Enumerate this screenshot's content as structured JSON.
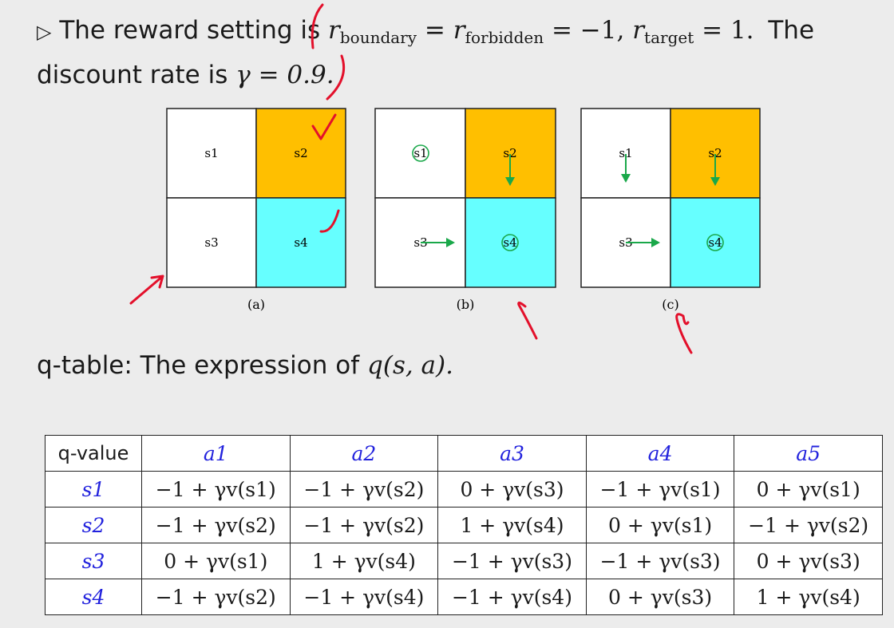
{
  "intro": {
    "bullet": "▷",
    "lead": "The reward setting is",
    "r_boundary_sym": "r",
    "r_boundary_sub": "boundary",
    "eq1": "=",
    "r_forbidden_sym": "r",
    "r_forbidden_sub": "forbidden",
    "eq2": "= −1,",
    "r_target_sym": "r",
    "r_target_sub": "target",
    "eq3": "= 1.",
    "tail": "The",
    "line2_lead": "discount rate is",
    "gamma_expr": "γ = 0.9."
  },
  "grids": [
    {
      "caption": "(a)",
      "cells": [
        "s1",
        "s2",
        "s3",
        "s4"
      ]
    },
    {
      "caption": "(b)",
      "cells": [
        "s1",
        "s2",
        "s3",
        "s4"
      ]
    },
    {
      "caption": "(c)",
      "cells": [
        "s1",
        "s2",
        "s3",
        "s4"
      ]
    }
  ],
  "colors": {
    "forbidden": "#ffbf00",
    "target": "#66ffff",
    "arrow": "#1aa84a",
    "ink": "#e3102b"
  },
  "qtable_label": {
    "lead": "q-table: The expression of",
    "expr": "q(s, a)."
  },
  "qtable": {
    "corner": "q-value",
    "actions": [
      "a1",
      "a2",
      "a3",
      "a4",
      "a5"
    ],
    "states": [
      "s1",
      "s2",
      "s3",
      "s4"
    ],
    "rows": [
      [
        "−1 + γv(s1)",
        "−1 + γv(s2)",
        "0 + γv(s3)",
        "−1 + γv(s1)",
        "0 + γv(s1)"
      ],
      [
        "−1 + γv(s2)",
        "−1 + γv(s2)",
        "1 + γv(s4)",
        "0 + γv(s1)",
        "−1 + γv(s2)"
      ],
      [
        "0 + γv(s1)",
        "1 + γv(s4)",
        "−1 + γv(s3)",
        "−1 + γv(s3)",
        "0 + γv(s3)"
      ],
      [
        "−1 + γv(s2)",
        "−1 + γv(s4)",
        "−1 + γv(s4)",
        "0 + γv(s3)",
        "1 + γv(s4)"
      ]
    ]
  }
}
